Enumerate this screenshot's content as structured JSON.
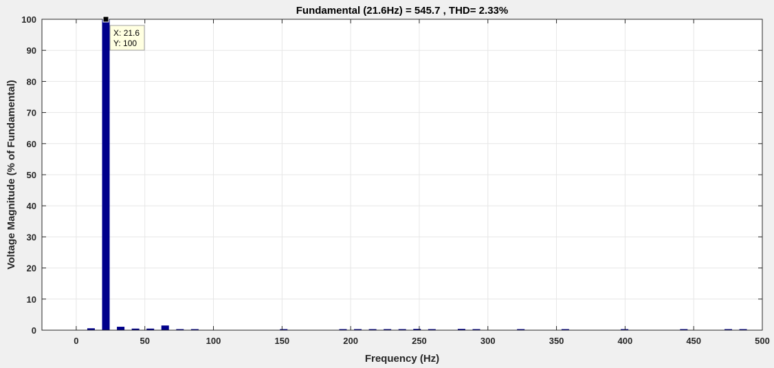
{
  "chart_data": {
    "type": "bar",
    "title": "Fundamental (21.6Hz) = 545.7 , THD= 2.33%",
    "xlabel": "Frequency (Hz)",
    "ylabel": "Voltage Magnitude (% of Fundamental)",
    "xlim": [
      -25,
      500
    ],
    "ylim": [
      0,
      100
    ],
    "xticks": [
      0,
      50,
      100,
      150,
      200,
      250,
      300,
      350,
      400,
      450,
      500
    ],
    "yticks": [
      0,
      10,
      20,
      30,
      40,
      50,
      60,
      70,
      80,
      90,
      100
    ],
    "grid": true,
    "bar_color": "#00008b",
    "x": [
      10.8,
      21.6,
      32.4,
      43.2,
      54.0,
      64.8,
      75.6,
      86.4,
      151.2,
      194.4,
      205.2,
      216.0,
      226.8,
      237.6,
      248.4,
      259.2,
      280.8,
      291.6,
      324.0,
      356.4,
      399.6,
      442.8,
      475.2,
      486.0
    ],
    "values": [
      0.6,
      100,
      1.1,
      0.5,
      0.5,
      1.5,
      0.2,
      0.2,
      0.15,
      0.15,
      0.15,
      0.15,
      0.15,
      0.15,
      0.4,
      0.3,
      0.4,
      0.2,
      0.15,
      0.15,
      0.15,
      0.15,
      0.15,
      0.15
    ],
    "datatip": {
      "x_text": "X: 21.6",
      "y_text": "Y: 100",
      "x": 21.6,
      "y": 100
    }
  }
}
